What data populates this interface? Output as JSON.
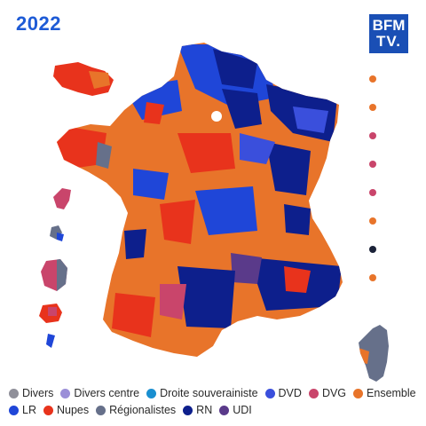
{
  "header": {
    "year": "2022"
  },
  "logo": {
    "line1": "BFM",
    "line2": "TV."
  },
  "colors": {
    "divers": "#8f8f99",
    "divers_centre": "#9b8fd8",
    "droite_souverainiste": "#1a8fd0",
    "dvd": "#3a4fdc",
    "dvg": "#c9456b",
    "ensemble": "#e8742a",
    "lr": "#1f46d8",
    "nupes": "#e8331c",
    "regionalistes": "#66708a",
    "rn": "#0d1f8c",
    "udi": "#5a3a8a"
  },
  "side_dots": [
    "#e8742a",
    "#e8742a",
    "#c9456b",
    "#c9456b",
    "#c9456b",
    "#e8742a",
    "#1b2238",
    "#e8742a"
  ],
  "legend": {
    "row1": [
      {
        "label": "Divers",
        "color": "#8f8f99"
      },
      {
        "label": "Divers centre",
        "color": "#9b8fd8"
      },
      {
        "label": "Droite souverainiste",
        "color": "#1a8fd0"
      },
      {
        "label": "DVD",
        "color": "#3a4fdc"
      },
      {
        "label": "DVG",
        "color": "#c9456b"
      },
      {
        "label": "Ensemble",
        "color": "#e8742a"
      }
    ],
    "row2": [
      {
        "label": "LR",
        "color": "#1f46d8"
      },
      {
        "label": "Nupes",
        "color": "#e8331c"
      },
      {
        "label": "Régionalistes",
        "color": "#66708a"
      },
      {
        "label": "RN",
        "color": "#0d1f8c"
      },
      {
        "label": "UDI",
        "color": "#5a3a8a"
      }
    ]
  }
}
